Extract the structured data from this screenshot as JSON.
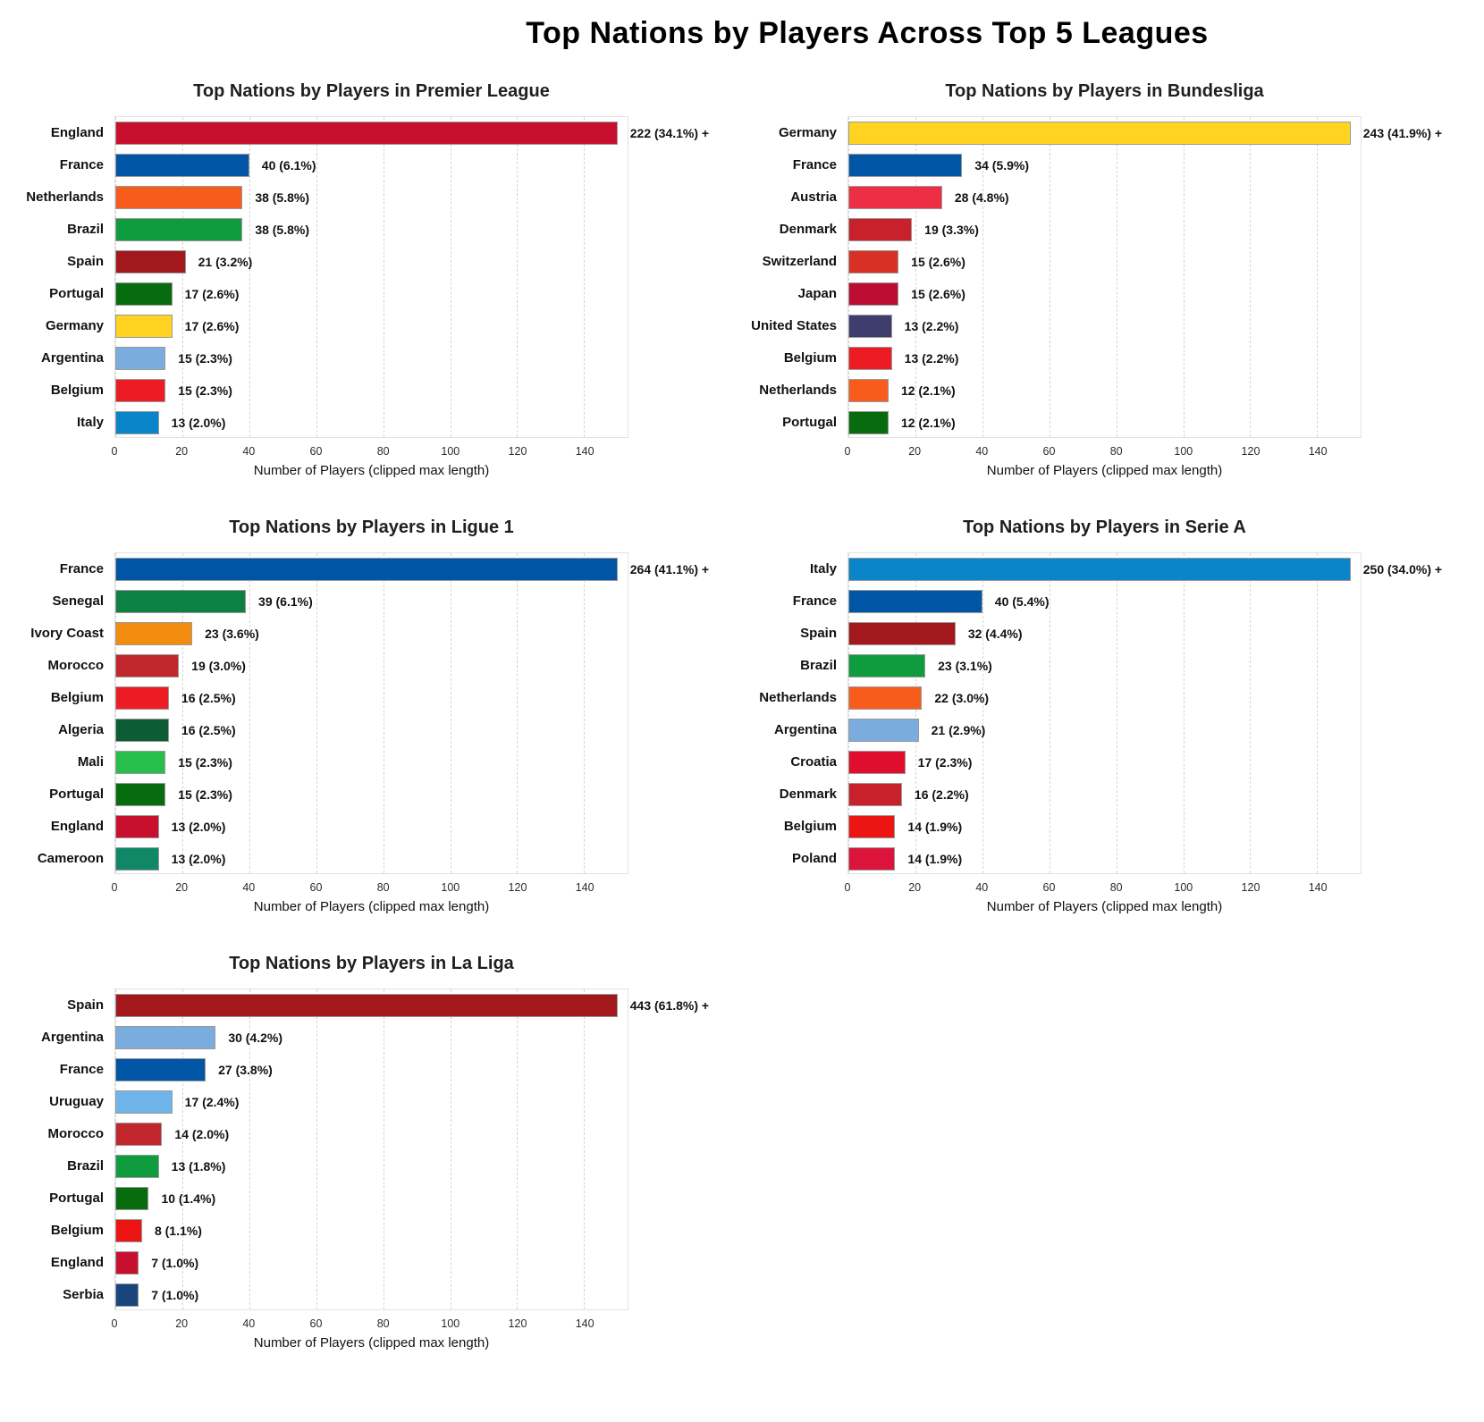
{
  "page": {
    "title": "Top Nations by Players Across Top 5 Leagues"
  },
  "axis": {
    "xlabel": "Number of Players (clipped max length)",
    "ticks": [
      0,
      20,
      40,
      60,
      80,
      100,
      120,
      140
    ],
    "xmax": 153,
    "clip_length": 150
  },
  "chart_data": [
    {
      "type": "bar",
      "league": "premier-league",
      "title": "Top Nations by Players in Premier League",
      "xlabel": "Number of Players (clipped max length)",
      "xlim": [
        0,
        153
      ],
      "grid": "vertical-dashed",
      "categories": [
        "England",
        "France",
        "Netherlands",
        "Brazil",
        "Spain",
        "Portugal",
        "Germany",
        "Argentina",
        "Belgium",
        "Italy"
      ],
      "values": [
        222,
        40,
        38,
        38,
        21,
        17,
        17,
        15,
        15,
        13
      ],
      "bar_lengths": [
        150,
        40,
        38,
        38,
        21,
        17,
        17,
        15,
        15,
        13
      ],
      "labels": [
        "222 (34.1%) +",
        "40 (6.1%)",
        "38 (5.8%)",
        "38 (5.8%)",
        "21 (3.2%)",
        "17 (2.6%)",
        "17 (2.6%)",
        "15 (2.3%)",
        "15 (2.3%)",
        "13 (2.0%)"
      ],
      "colors": [
        "#C8102E",
        "#0055A4",
        "#F85C1D",
        "#0E9C3F",
        "#A3181D",
        "#076C0E",
        "#FFD320",
        "#7AACDE",
        "#ED1C24",
        "#0B85C9"
      ]
    },
    {
      "type": "bar",
      "league": "bundesliga",
      "title": "Top Nations by Players in Bundesliga",
      "xlabel": "Number of Players (clipped max length)",
      "xlim": [
        0,
        153
      ],
      "grid": "vertical-dashed",
      "categories": [
        "Germany",
        "France",
        "Austria",
        "Denmark",
        "Switzerland",
        "Japan",
        "United States",
        "Belgium",
        "Netherlands",
        "Portugal"
      ],
      "values": [
        243,
        34,
        28,
        19,
        15,
        15,
        13,
        13,
        12,
        12
      ],
      "bar_lengths": [
        150,
        34,
        28,
        19,
        15,
        15,
        13,
        13,
        12,
        12
      ],
      "labels": [
        "243 (41.9%) +",
        "34 (5.9%)",
        "28 (4.8%)",
        "19 (3.3%)",
        "15 (2.6%)",
        "15 (2.6%)",
        "13 (2.2%)",
        "13 (2.2%)",
        "12 (2.1%)",
        "12 (2.1%)"
      ],
      "colors": [
        "#FFD320",
        "#0055A4",
        "#ED2E45",
        "#C9212B",
        "#D93025",
        "#BC0D33",
        "#3F3D6D",
        "#ED1C24",
        "#F85C1D",
        "#076C0E"
      ]
    },
    {
      "type": "bar",
      "league": "ligue-1",
      "title": "Top Nations by Players in Ligue 1",
      "xlabel": "Number of Players (clipped max length)",
      "xlim": [
        0,
        153
      ],
      "grid": "vertical-dashed",
      "categories": [
        "France",
        "Senegal",
        "Ivory Coast",
        "Morocco",
        "Belgium",
        "Algeria",
        "Mali",
        "Portugal",
        "England",
        "Cameroon"
      ],
      "values": [
        264,
        39,
        23,
        19,
        16,
        16,
        15,
        15,
        13,
        13
      ],
      "bar_lengths": [
        150,
        39,
        23,
        19,
        16,
        16,
        15,
        15,
        13,
        13
      ],
      "labels": [
        "264 (41.1%) +",
        "39 (6.1%)",
        "23 (3.6%)",
        "19 (3.0%)",
        "16 (2.5%)",
        "16 (2.5%)",
        "15 (2.3%)",
        "15 (2.3%)",
        "13 (2.0%)",
        "13 (2.0%)"
      ],
      "colors": [
        "#0055A4",
        "#0C8142",
        "#F28C0F",
        "#C1272D",
        "#ED1C24",
        "#0C5C35",
        "#28BE4B",
        "#076C0E",
        "#C8102E",
        "#108767"
      ]
    },
    {
      "type": "bar",
      "league": "serie-a",
      "title": "Top Nations by Players in Serie A",
      "xlabel": "Number of Players (clipped max length)",
      "xlim": [
        0,
        153
      ],
      "grid": "vertical-dashed",
      "categories": [
        "Italy",
        "France",
        "Spain",
        "Brazil",
        "Netherlands",
        "Argentina",
        "Croatia",
        "Denmark",
        "Belgium",
        "Poland"
      ],
      "values": [
        250,
        40,
        32,
        23,
        22,
        21,
        17,
        16,
        14,
        14
      ],
      "bar_lengths": [
        150,
        40,
        32,
        23,
        22,
        21,
        17,
        16,
        14,
        14
      ],
      "labels": [
        "250 (34.0%) +",
        "40 (5.4%)",
        "32 (4.4%)",
        "23 (3.1%)",
        "22 (3.0%)",
        "21 (2.9%)",
        "17 (2.3%)",
        "16 (2.2%)",
        "14 (1.9%)",
        "14 (1.9%)"
      ],
      "colors": [
        "#0B85C9",
        "#0055A4",
        "#A3181D",
        "#0E9C3F",
        "#F85C1D",
        "#7AACDE",
        "#E00D2D",
        "#C9212B",
        "#ED1414",
        "#DC143C"
      ]
    },
    {
      "type": "bar",
      "league": "la-liga",
      "title": "Top Nations by Players in La Liga",
      "xlabel": "Number of Players (clipped max length)",
      "xlim": [
        0,
        153
      ],
      "grid": "vertical-dashed",
      "categories": [
        "Spain",
        "Argentina",
        "France",
        "Uruguay",
        "Morocco",
        "Brazil",
        "Portugal",
        "Belgium",
        "England",
        "Serbia"
      ],
      "values": [
        443,
        30,
        27,
        17,
        14,
        13,
        10,
        8,
        7,
        7
      ],
      "bar_lengths": [
        150,
        30,
        27,
        17,
        14,
        13,
        10,
        8,
        7,
        7
      ],
      "labels": [
        "443 (61.8%) +",
        "30 (4.2%)",
        "27 (3.8%)",
        "17 (2.4%)",
        "14 (2.0%)",
        "13 (1.8%)",
        "10 (1.4%)",
        "8 (1.1%)",
        "7 (1.0%)",
        "7 (1.0%)"
      ],
      "colors": [
        "#A3181D",
        "#7AACDE",
        "#0055A4",
        "#6FB5E9",
        "#C1272D",
        "#0E9C3F",
        "#076C0E",
        "#ED1414",
        "#C8102E",
        "#17457C"
      ]
    }
  ]
}
